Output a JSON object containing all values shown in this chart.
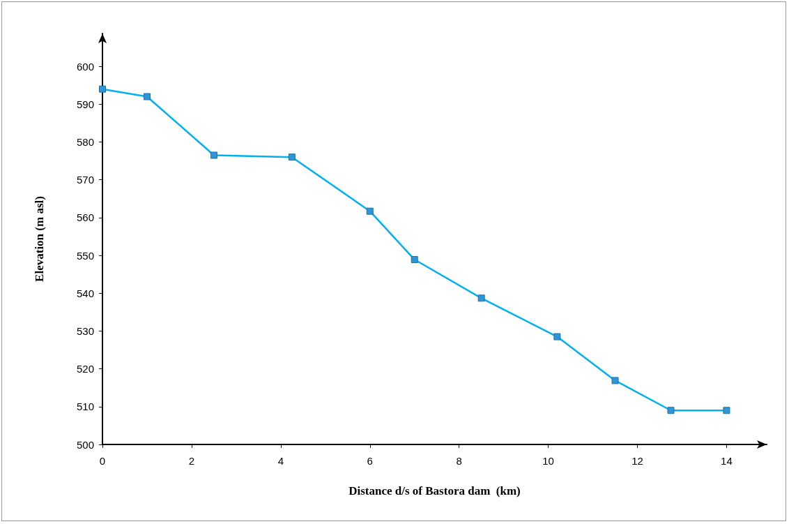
{
  "chart_data": {
    "type": "line",
    "xlabel": "Distance d/s of Bastora dam  (km)",
    "ylabel": "Elevation (m asl)",
    "x": [
      0,
      1,
      2.5,
      4.25,
      6,
      7,
      8.5,
      10.2,
      11.5,
      12.75,
      14
    ],
    "series": [
      {
        "color": "#00b0f0",
        "values": [
          594,
          592,
          576.5,
          576,
          561.7,
          548.9,
          538.7,
          528.5,
          516.9,
          509,
          509
        ]
      }
    ],
    "xlim": [
      0,
      14.9
    ],
    "xticks": [
      0,
      2,
      4,
      6,
      8,
      10,
      12,
      14
    ],
    "ylim": [
      500,
      608.7
    ],
    "yticks": [
      500,
      510,
      520,
      530,
      540,
      550,
      560,
      570,
      580,
      590,
      600
    ],
    "grid": false,
    "marker": "square",
    "line_style": "solid"
  }
}
